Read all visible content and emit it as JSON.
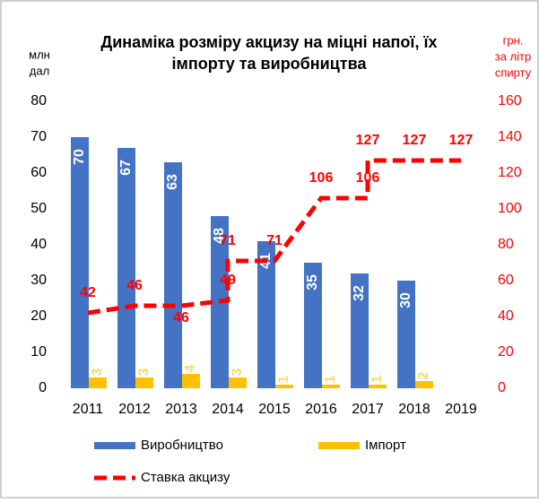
{
  "chart_data": {
    "type": "bar",
    "title": [
      "Динаміка розміру акцизу на міцні напої, їх",
      "імпорту та виробництва"
    ],
    "y_label": [
      "млн",
      "дал"
    ],
    "y2_label": [
      "грн.",
      "за літр",
      "спирту"
    ],
    "categories": [
      "2011",
      "2012",
      "2013",
      "2014",
      "2015",
      "2016",
      "2017",
      "2018",
      "2019"
    ],
    "ylim": [
      0,
      80
    ],
    "yticks": [
      0,
      10,
      20,
      30,
      40,
      50,
      60,
      70,
      80
    ],
    "y2lim": [
      0,
      160
    ],
    "y2ticks": [
      0,
      20,
      40,
      60,
      80,
      100,
      120,
      140,
      160
    ],
    "series": [
      {
        "name": "Виробництво",
        "color": "#4472c4",
        "values": [
          70,
          67,
          63,
          48,
          41,
          35,
          32,
          30,
          null
        ]
      },
      {
        "name": "Імпорт",
        "color": "#ffc000",
        "values": [
          3,
          3,
          4,
          3,
          1,
          1,
          1,
          2,
          null
        ]
      },
      {
        "name": "Ставка акцизу",
        "color": "#ff0000",
        "type": "line",
        "axis": "y2",
        "x": [
          2011,
          2012,
          2013,
          2014,
          2014,
          2015,
          2016,
          2017,
          2017,
          2018,
          2019
        ],
        "values": [
          42,
          46,
          46,
          49,
          71,
          71,
          106,
          106,
          127,
          127,
          127
        ]
      }
    ]
  }
}
